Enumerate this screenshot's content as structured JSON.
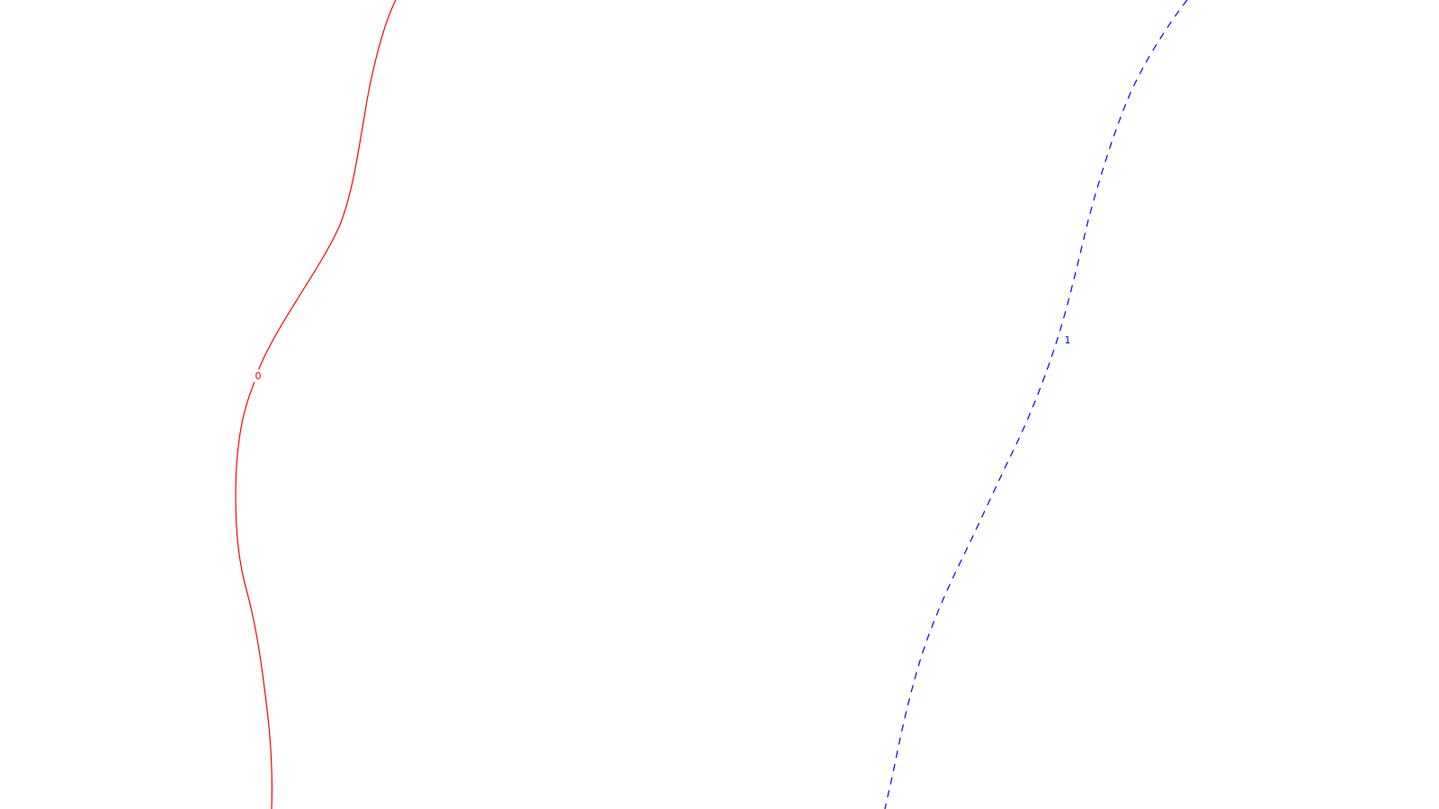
{
  "chart_data": {
    "type": "contour",
    "title": "",
    "xlabel": "",
    "ylabel": "",
    "grid": false,
    "legend": "none",
    "levels": [
      {
        "value": 0,
        "label": "0",
        "color": "#ff0000",
        "style": "solid"
      },
      {
        "value": 1,
        "label": "1",
        "color": "#0000ff",
        "style": "dashed"
      }
    ]
  }
}
